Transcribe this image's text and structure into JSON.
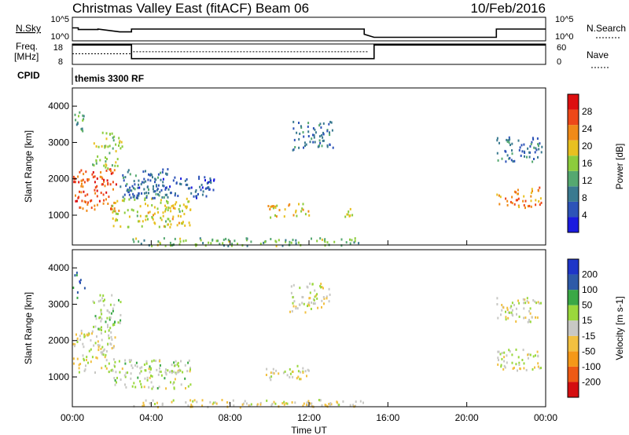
{
  "header": {
    "title": "Christmas Valley East (fitACF)",
    "beam": "Beam 06",
    "date": "10/Feb/2016"
  },
  "nsky_panel": {
    "left_label": "N.Sky",
    "right_label": "N.Search",
    "left_ticks": [
      "10^5",
      "10^0"
    ],
    "right_ticks": [
      "10^5",
      "10^0"
    ]
  },
  "freq_panel": {
    "left_label_1": "Freq.",
    "left_label_2": "[MHz]",
    "right_label": "Nave",
    "left_ticks": [
      "18",
      "8"
    ],
    "right_ticks": [
      "60",
      "0"
    ]
  },
  "cpid": {
    "label": "CPID",
    "value": "themis 3300 RF"
  },
  "time_axis": {
    "label": "Time UT",
    "ticks": [
      "00:00",
      "04:00",
      "08:00",
      "12:00",
      "16:00",
      "20:00",
      "00:00"
    ]
  },
  "power_panel": {
    "ylabel": "Slant Range [km]",
    "yticks": [
      "4000",
      "3000",
      "2000",
      "1000"
    ],
    "colorbar_label": "Power [dB]",
    "colorbar_ticks": [
      "28",
      "24",
      "20",
      "16",
      "12",
      "8",
      "4"
    ]
  },
  "velocity_panel": {
    "ylabel": "Slant Range [km]",
    "yticks": [
      "4000",
      "3000",
      "2000",
      "1000"
    ],
    "colorbar_label": "Velocity [m s-1]",
    "colorbar_ticks": [
      "200",
      "100",
      "50",
      "15",
      "-15",
      "-50",
      "-100",
      "-200"
    ]
  },
  "colors": {
    "power_scale": [
      "#1a1adf",
      "#2d53b8",
      "#3a7a90",
      "#55a870",
      "#8ccc3c",
      "#e8c020",
      "#f08a18",
      "#ee4818",
      "#dd0f10"
    ],
    "velocity_scale": [
      "#d40e10",
      "#ee5a14",
      "#f59818",
      "#f2c040",
      "#c8c8c4",
      "#9ad83c",
      "#3aa846",
      "#2e5aa8",
      "#1e36c8"
    ]
  },
  "chart_data": [
    {
      "type": "line",
      "name": "N.Sky / N.Search",
      "x_hours": [
        0,
        0.3,
        0.3,
        1.3,
        1.3,
        2.4,
        3.0,
        3.0,
        14.8,
        14.8,
        15.3,
        21.5,
        21.5,
        24
      ],
      "y_norm": [
        0.55,
        0.55,
        0.48,
        0.48,
        0.5,
        0.38,
        0.38,
        0.5,
        0.5,
        0.28,
        0.15,
        0.15,
        0.5,
        0.5
      ],
      "xlim": [
        0,
        24
      ]
    },
    {
      "type": "line",
      "name": "Frequency",
      "x_hours": [
        0,
        3,
        3,
        15,
        15,
        15.3,
        15.3,
        21.5,
        21.5,
        24
      ],
      "y_mhz": [
        17.5,
        17.5,
        10.8,
        10.8,
        10.8,
        10.8,
        17.5,
        17.5,
        17.5,
        17.5
      ],
      "ylim": [
        8,
        18
      ]
    },
    {
      "type": "heatmap",
      "title": "Power [dB]",
      "xlabel": "Time UT",
      "ylabel": "Slant Range [km]",
      "xlim": [
        0,
        24
      ],
      "ylim": [
        180,
        4500
      ],
      "clim": [
        0,
        32
      ],
      "regions": [
        {
          "t": [
            0,
            2.2
          ],
          "r": [
            1150,
            2300
          ],
          "value": 26
        },
        {
          "t": [
            0,
            0.6
          ],
          "r": [
            3200,
            3900
          ],
          "value": 12
        },
        {
          "t": [
            1.0,
            2.5
          ],
          "r": [
            2300,
            3300
          ],
          "value": 16
        },
        {
          "t": [
            2.0,
            6.0
          ],
          "r": [
            700,
            1500
          ],
          "value": 18
        },
        {
          "t": [
            2.4,
            4.8
          ],
          "r": [
            1500,
            2300
          ],
          "value": 8
        },
        {
          "t": [
            3.0,
            7.2
          ],
          "r": [
            1500,
            2100
          ],
          "value": 6
        },
        {
          "t": [
            9.8,
            12.0
          ],
          "r": [
            950,
            1350
          ],
          "value": 20
        },
        {
          "t": [
            11.0,
            13.2
          ],
          "r": [
            2800,
            3600
          ],
          "value": 8
        },
        {
          "t": [
            13.8,
            14.5
          ],
          "r": [
            900,
            1200
          ],
          "value": 18
        },
        {
          "t": [
            3.0,
            14.8
          ],
          "r": [
            180,
            400
          ],
          "value": 14
        },
        {
          "t": [
            21.5,
            23.8
          ],
          "r": [
            1200,
            1800
          ],
          "value": 24
        },
        {
          "t": [
            21.5,
            23.8
          ],
          "r": [
            2500,
            3200
          ],
          "value": 8
        }
      ]
    },
    {
      "type": "heatmap",
      "title": "Velocity [m s-1]",
      "xlabel": "Time UT",
      "ylabel": "Slant Range [km]",
      "xlim": [
        0,
        24
      ],
      "ylim": [
        180,
        4500
      ],
      "clim": [
        -250,
        250
      ],
      "regions": [
        {
          "t": [
            0,
            2.2
          ],
          "r": [
            1150,
            2300
          ],
          "value": 0
        },
        {
          "t": [
            0,
            0.6
          ],
          "r": [
            3200,
            3900
          ],
          "value": 150
        },
        {
          "t": [
            1.0,
            2.5
          ],
          "r": [
            2300,
            3300
          ],
          "value": 40
        },
        {
          "t": [
            2.0,
            6.0
          ],
          "r": [
            700,
            1500
          ],
          "value": 30
        },
        {
          "t": [
            9.8,
            12.0
          ],
          "r": [
            950,
            1350
          ],
          "value": 0
        },
        {
          "t": [
            11.0,
            13.2
          ],
          "r": [
            2800,
            3600
          ],
          "value": 0
        },
        {
          "t": [
            3.0,
            14.8
          ],
          "r": [
            180,
            400
          ],
          "value": -20
        },
        {
          "t": [
            21.5,
            23.8
          ],
          "r": [
            1200,
            1800
          ],
          "value": 0
        },
        {
          "t": [
            21.5,
            23.8
          ],
          "r": [
            2500,
            3200
          ],
          "value": 0
        }
      ]
    }
  ]
}
